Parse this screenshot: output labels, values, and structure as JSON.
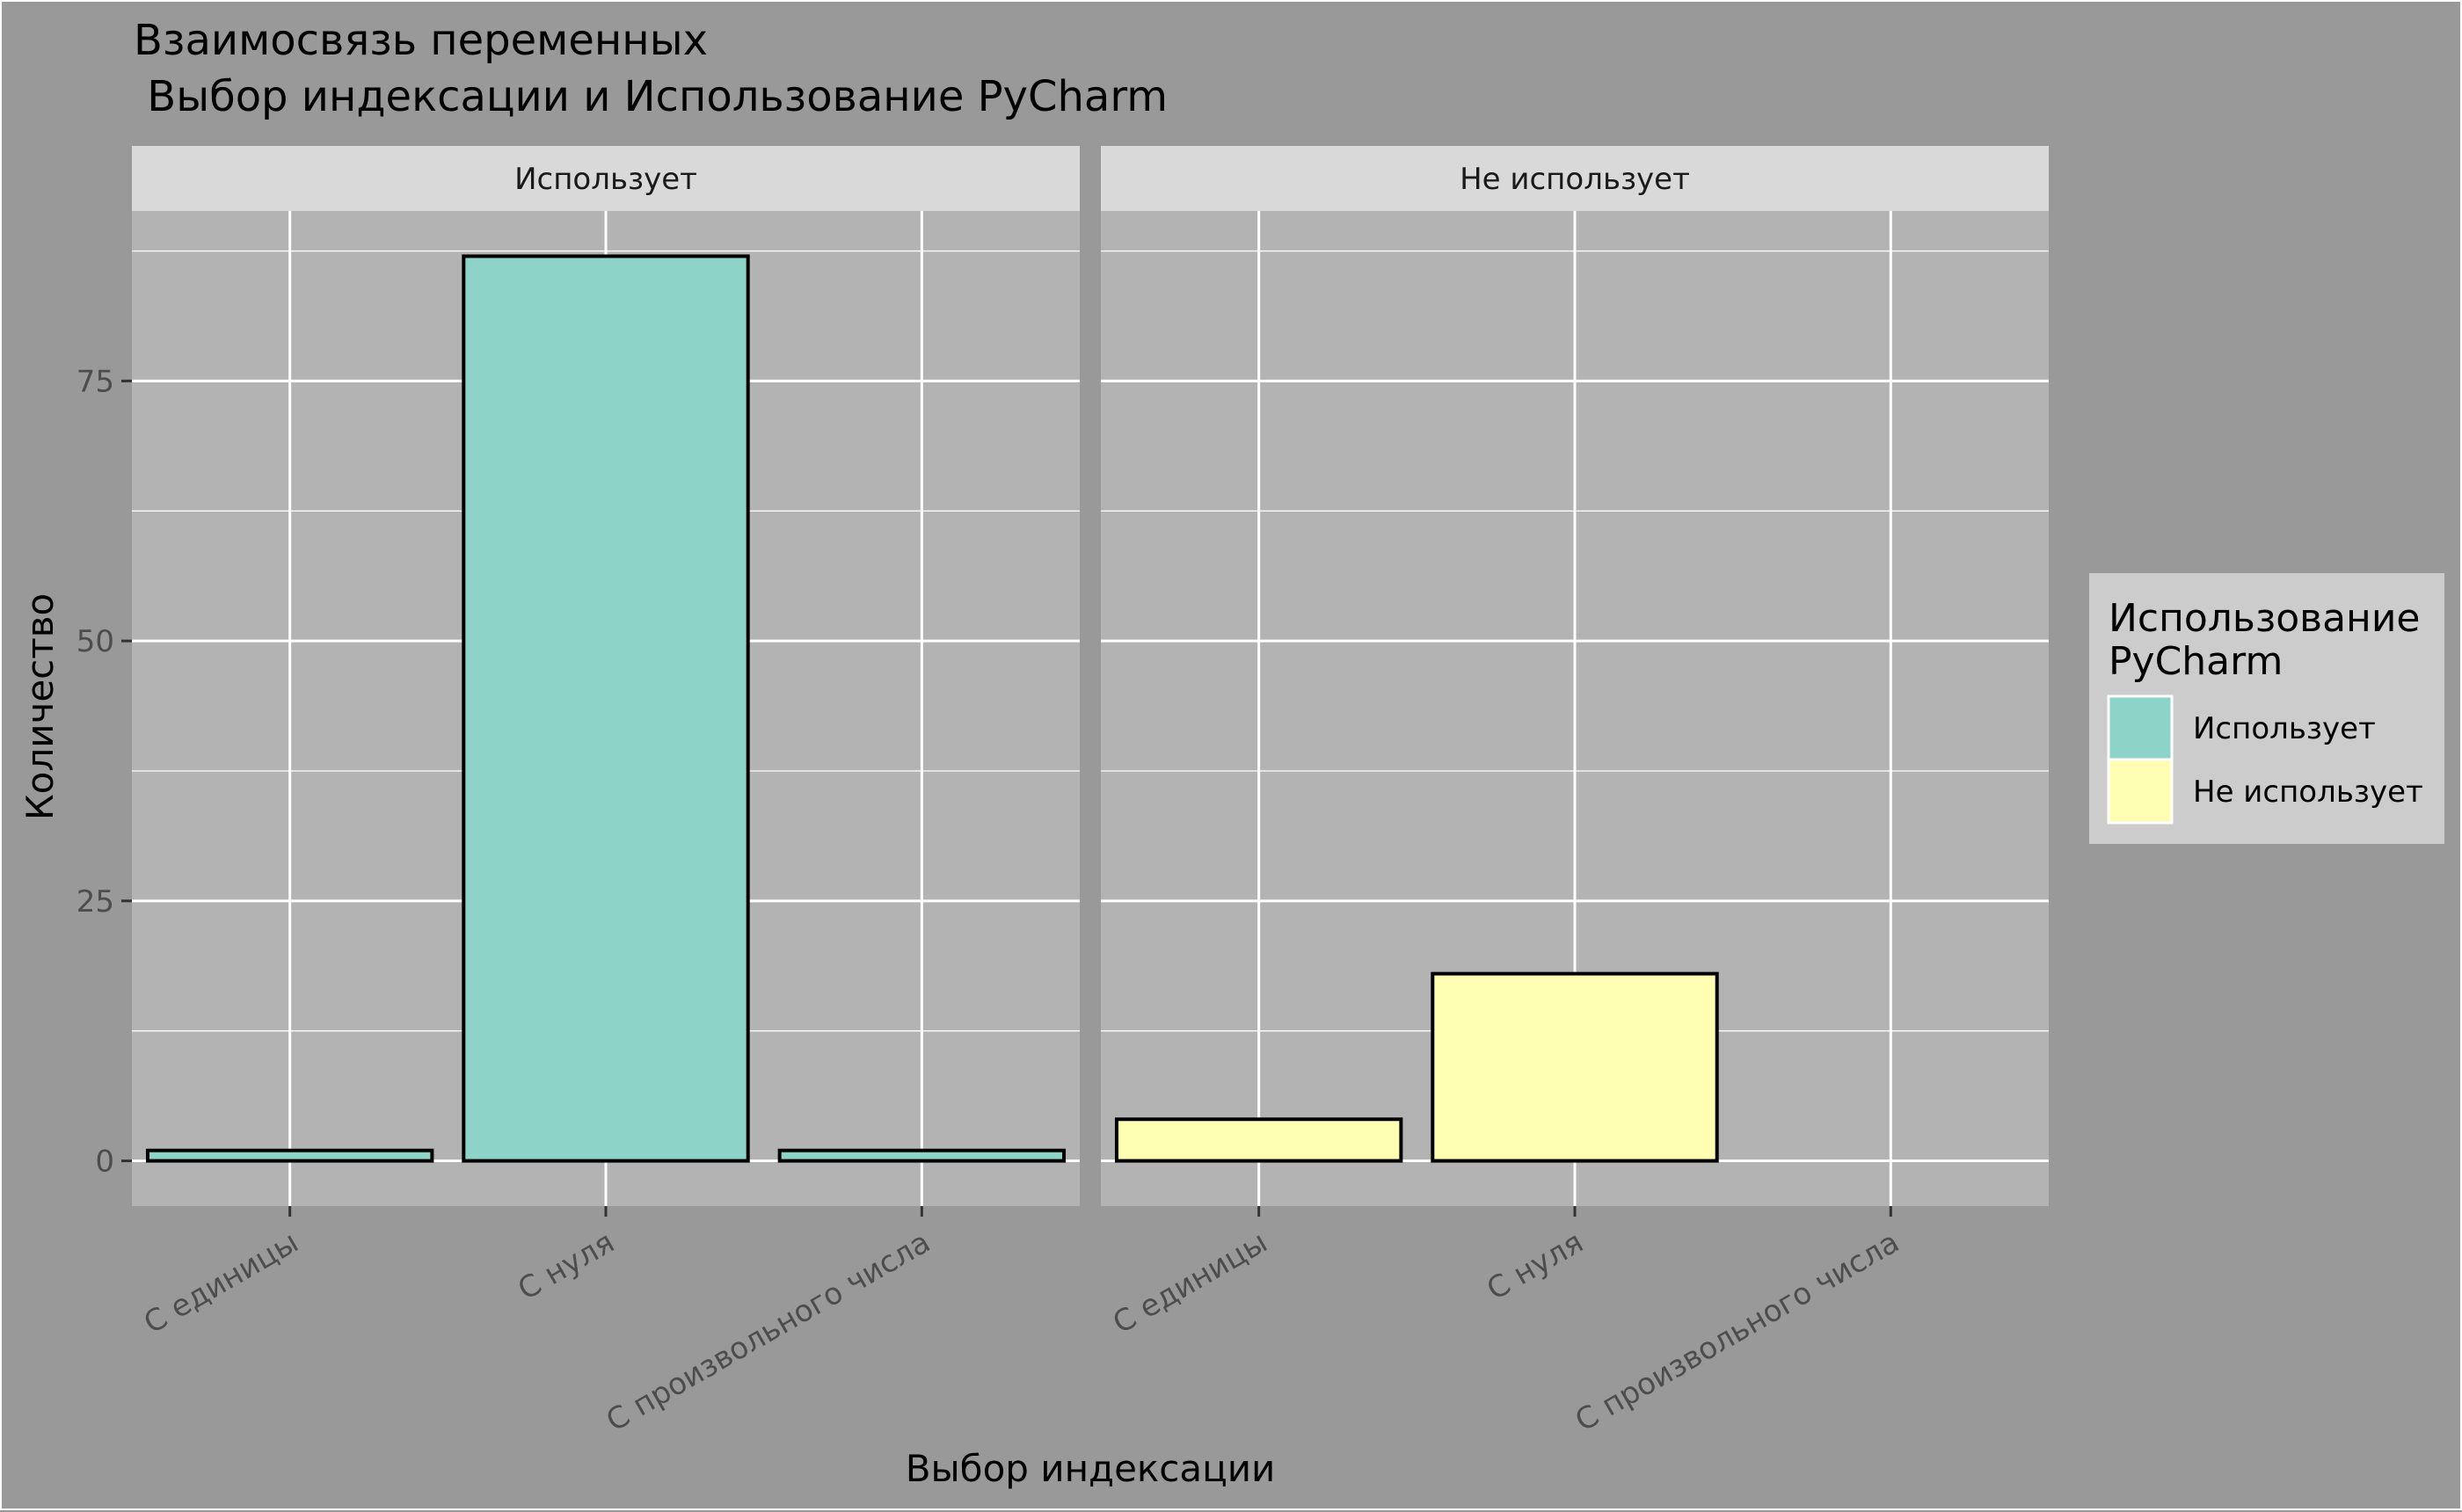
{
  "chart_data": {
    "type": "bar",
    "title_lines": [
      "Взаимосвязь переменных",
      " Выбор индексации и Использование PyCharm"
    ],
    "xlabel": "Выбор индексации",
    "ylabel": "Количество",
    "categories": [
      "С единицы",
      "С нуля",
      "С произвольного числа"
    ],
    "facets": [
      {
        "label": "Использует",
        "series": "Использует",
        "values": [
          1,
          87,
          1
        ]
      },
      {
        "label": "Не использует",
        "series": "Не использует",
        "values": [
          4,
          18,
          0
        ]
      }
    ],
    "ylim": [
      -4.35,
      91.35
    ],
    "yticks": [
      0,
      25,
      50,
      75
    ],
    "ytick_labels": [
      "0",
      "25",
      "50",
      "75"
    ],
    "grid": true,
    "legend": {
      "title_lines": [
        "Использование",
        "PyCharm"
      ],
      "entries": [
        {
          "label": "Использует",
          "color": "#8DD3C7"
        },
        {
          "label": "Не использует",
          "color": "#FFFFB3"
        }
      ],
      "placement": "right"
    },
    "colors": {
      "background": "#999999",
      "panel": "#B3B3B3",
      "strip": "#D9D9D9",
      "grid": "#FFFFFF",
      "bar_outline": "#000000",
      "legend_background": "#CCCCCC"
    }
  }
}
